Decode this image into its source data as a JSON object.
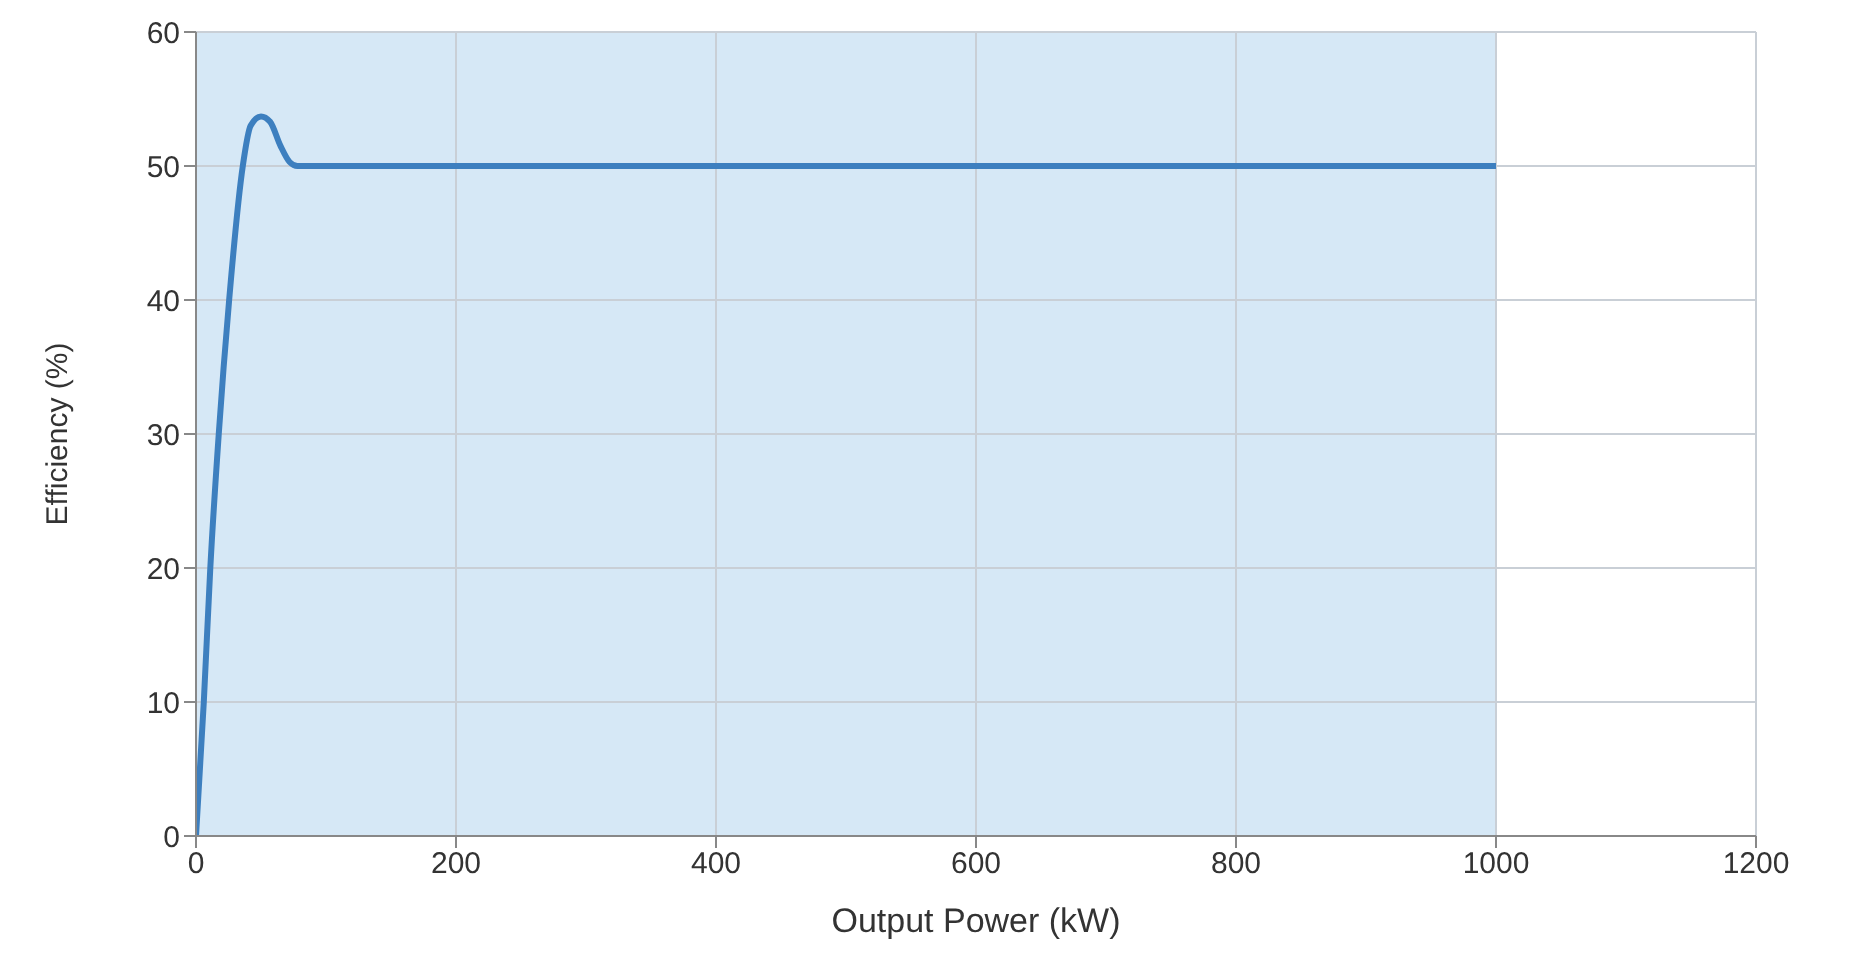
{
  "chart_data": {
    "type": "line",
    "xlabel": "Output Power (kW)",
    "ylabel": "Efficiency (%)",
    "x": [
      0,
      6,
      11,
      17.5,
      25.5,
      36,
      42,
      50,
      57,
      65,
      72,
      78,
      200,
      400,
      600,
      800,
      1000
    ],
    "series": [
      {
        "color": "#3d7fbf",
        "values": [
          0,
          10,
          20,
          30,
          40,
          50,
          53,
          53.7,
          53.3,
          51.5,
          50.3,
          50,
          50,
          50,
          50,
          50,
          50
        ]
      }
    ],
    "xlim": [
      0,
      1200
    ],
    "xticks": [
      0,
      200,
      400,
      600,
      800,
      1000,
      1200
    ],
    "ylim": [
      0,
      60
    ],
    "yticks": [
      0,
      10,
      20,
      30,
      40,
      50,
      60
    ],
    "bands": [
      {
        "axis": "x",
        "from": 0,
        "to": 1000,
        "color": "#d6e8f6"
      }
    ],
    "grid": true,
    "marker": "none",
    "line_style": "solid"
  }
}
